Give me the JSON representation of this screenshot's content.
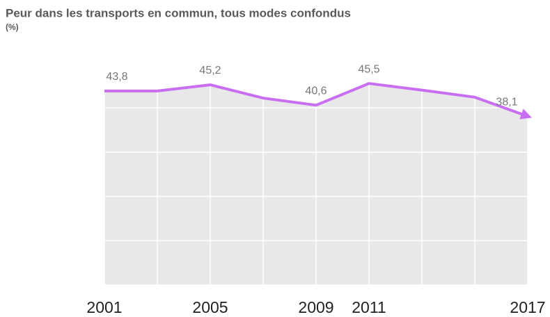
{
  "chart_data": {
    "type": "line",
    "title": "Peur dans les transports en commun, tous modes confondus",
    "subtitle": "(%)",
    "x": [
      2001,
      2003,
      2005,
      2007,
      2009,
      2011,
      2013,
      2015,
      2017
    ],
    "series": [
      {
        "color": "#c86ef2",
        "values": [
          43.8,
          43.8,
          45.2,
          42.2,
          40.6,
          45.5,
          44.0,
          42.4,
          38.1
        ],
        "value_labels": [
          "43,8",
          null,
          "45,2",
          null,
          "40,6",
          "45,5",
          null,
          null,
          "38,1"
        ]
      }
    ],
    "xlim": [
      2001,
      2017
    ],
    "xticks": [
      2001,
      2005,
      2009,
      2011,
      2017
    ],
    "ylim": [
      0,
      50
    ],
    "yticks": [
      0,
      10,
      20,
      30,
      40
    ],
    "area_color": "#e8e8e8",
    "grid": true
  }
}
